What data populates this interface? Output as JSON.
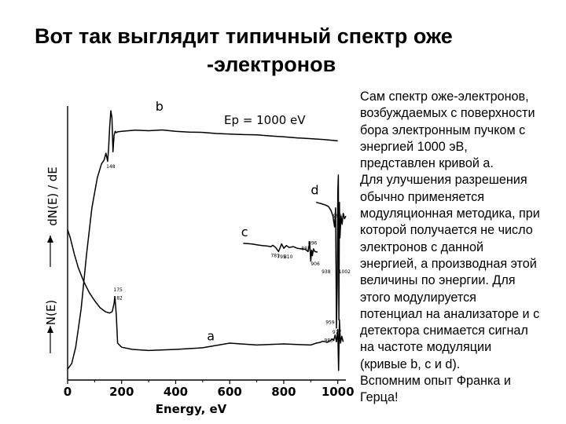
{
  "slide": {
    "title_line1": "Вот так выглядит типичный спектр оже",
    "title_line2": "-электронов",
    "text_lines": [
      "Сам спектр оже-электронов,",
      "возбуждаемых  с поверхности",
      "бора электронным пучком с",
      "энергией 1000 эВ,",
      "представлен кривой а.",
      "Для улучшения разрешения",
      "обычно применяется",
      "модуляционная методика, при",
      "которой получается не число",
      "электронов с данной",
      "энергией, а производная этой",
      "величины по энергии. Для",
      "этого модулируется",
      "потенциал на анализаторе и с",
      "детектора снимается сигнал",
      "на частоте модуляции",
      "(кривые b, c и d).",
      "Вспомним опыт Франка и",
      "Герца!"
    ]
  },
  "chart_data": {
    "type": "line",
    "xlabel": "Energy, eV",
    "ylabel_upper": "dN(E) / dE",
    "ylabel_lower": "N(E)",
    "xlim": [
      0,
      1030
    ],
    "x_ticks": [
      0,
      200,
      400,
      600,
      800,
      1000
    ],
    "annotation_ep": "Ep = 1000 eV",
    "series": [
      {
        "name": "a",
        "x": [
          0,
          10,
          25,
          40,
          60,
          80,
          100,
          120,
          140,
          155,
          165,
          172,
          175,
          180,
          185,
          200,
          240,
          300,
          400,
          500,
          600,
          700,
          800,
          850,
          900,
          920,
          935,
          945,
          955,
          960,
          970,
          980,
          985,
          990,
          995,
          1000,
          1003,
          1006,
          1010,
          1015,
          1020
        ],
        "y": [
          5.5,
          5.2,
          4.6,
          4.1,
          3.6,
          3.2,
          2.9,
          2.65,
          2.5,
          2.45,
          2.5,
          2.8,
          3.05,
          2.4,
          1.35,
          1.2,
          1.12,
          1.08,
          1.12,
          1.18,
          1.35,
          1.28,
          1.32,
          1.3,
          1.28,
          1.35,
          1.38,
          1.42,
          1.4,
          1.38,
          1.42,
          1.5,
          1.45,
          1.65,
          1.4,
          1.85,
          0.35,
          2.2,
          1.35,
          1.6,
          1.4
        ]
      },
      {
        "name": "b",
        "x": [
          0,
          15,
          30,
          50,
          70,
          90,
          110,
          125,
          135,
          142,
          148,
          152,
          156,
          160,
          164,
          168,
          172,
          176,
          180,
          185,
          200,
          250,
          300,
          350,
          400,
          450,
          500,
          550,
          600,
          650,
          700,
          750,
          800,
          850,
          900,
          950,
          1000
        ],
        "y": [
          0.4,
          0.6,
          1.2,
          2.6,
          4.6,
          6.3,
          7.4,
          7.9,
          8.05,
          8.3,
          8.0,
          8.5,
          9.3,
          9.85,
          9.6,
          8.35,
          8.95,
          9.1,
          9.05,
          9.08,
          9.1,
          9.14,
          9.12,
          9.15,
          9.1,
          9.07,
          9.06,
          9.02,
          9.0,
          8.98,
          8.97,
          8.93,
          8.9,
          8.86,
          8.83,
          8.8,
          8.75
        ]
      },
      {
        "name": "c",
        "x": [
          650,
          680,
          700,
          720,
          740,
          752,
          760,
          770,
          781,
          792,
          800,
          810,
          820,
          835,
          850,
          865,
          880,
          890,
          896,
          900,
          903,
          906,
          910,
          915,
          925
        ],
        "y": [
          5.0,
          4.98,
          4.95,
          4.92,
          4.9,
          4.88,
          4.93,
          4.85,
          4.7,
          4.98,
          4.82,
          4.92,
          4.85,
          4.88,
          4.82,
          4.8,
          4.78,
          4.7,
          5.05,
          4.35,
          4.75,
          4.55,
          4.8,
          4.7,
          4.68
        ]
      },
      {
        "name": "d",
        "x": [
          920,
          940,
          955,
          965,
          975,
          982,
          988,
          992,
          995,
          998,
          1000,
          1002,
          1004,
          1006,
          1008,
          1012,
          1016,
          1020,
          1025,
          1030
        ],
        "y": [
          6.5,
          6.45,
          6.4,
          6.35,
          6.2,
          6.0,
          5.6,
          6.3,
          1.9,
          3.5,
          6.9,
          7.5,
          2.2,
          6.5,
          5.2,
          6.0,
          5.7,
          6.1,
          5.9,
          6.0
        ]
      }
    ],
    "curve_labels": [
      {
        "text": "a",
        "x": 530,
        "y": 1.45
      },
      {
        "text": "b",
        "x": 340,
        "y": 9.85
      },
      {
        "text": "c",
        "x": 655,
        "y": 5.25
      },
      {
        "text": "d",
        "x": 915,
        "y": 6.8
      }
    ],
    "peak_labels": [
      {
        "text": "148",
        "x": 143,
        "y": 7.75
      },
      {
        "text": "175",
        "x": 170,
        "y": 3.25
      },
      {
        "text": "182",
        "x": 170,
        "y": 2.95
      },
      {
        "text": "781",
        "x": 752,
        "y": 4.5
      },
      {
        "text": "795",
        "x": 775,
        "y": 4.45
      },
      {
        "text": "810",
        "x": 800,
        "y": 4.45
      },
      {
        "text": "881",
        "x": 865,
        "y": 4.75
      },
      {
        "text": "896",
        "x": 890,
        "y": 4.95
      },
      {
        "text": "906",
        "x": 900,
        "y": 4.2
      },
      {
        "text": "938",
        "x": 940,
        "y": 3.9
      },
      {
        "text": "959",
        "x": 955,
        "y": 2.05
      },
      {
        "text": "977",
        "x": 980,
        "y": 1.7
      },
      {
        "text": "983",
        "x": 950,
        "y": 1.4
      },
      {
        "text": "992",
        "x": 982,
        "y": 5.95
      },
      {
        "text": "1002",
        "x": 1003,
        "y": 3.9
      }
    ]
  }
}
